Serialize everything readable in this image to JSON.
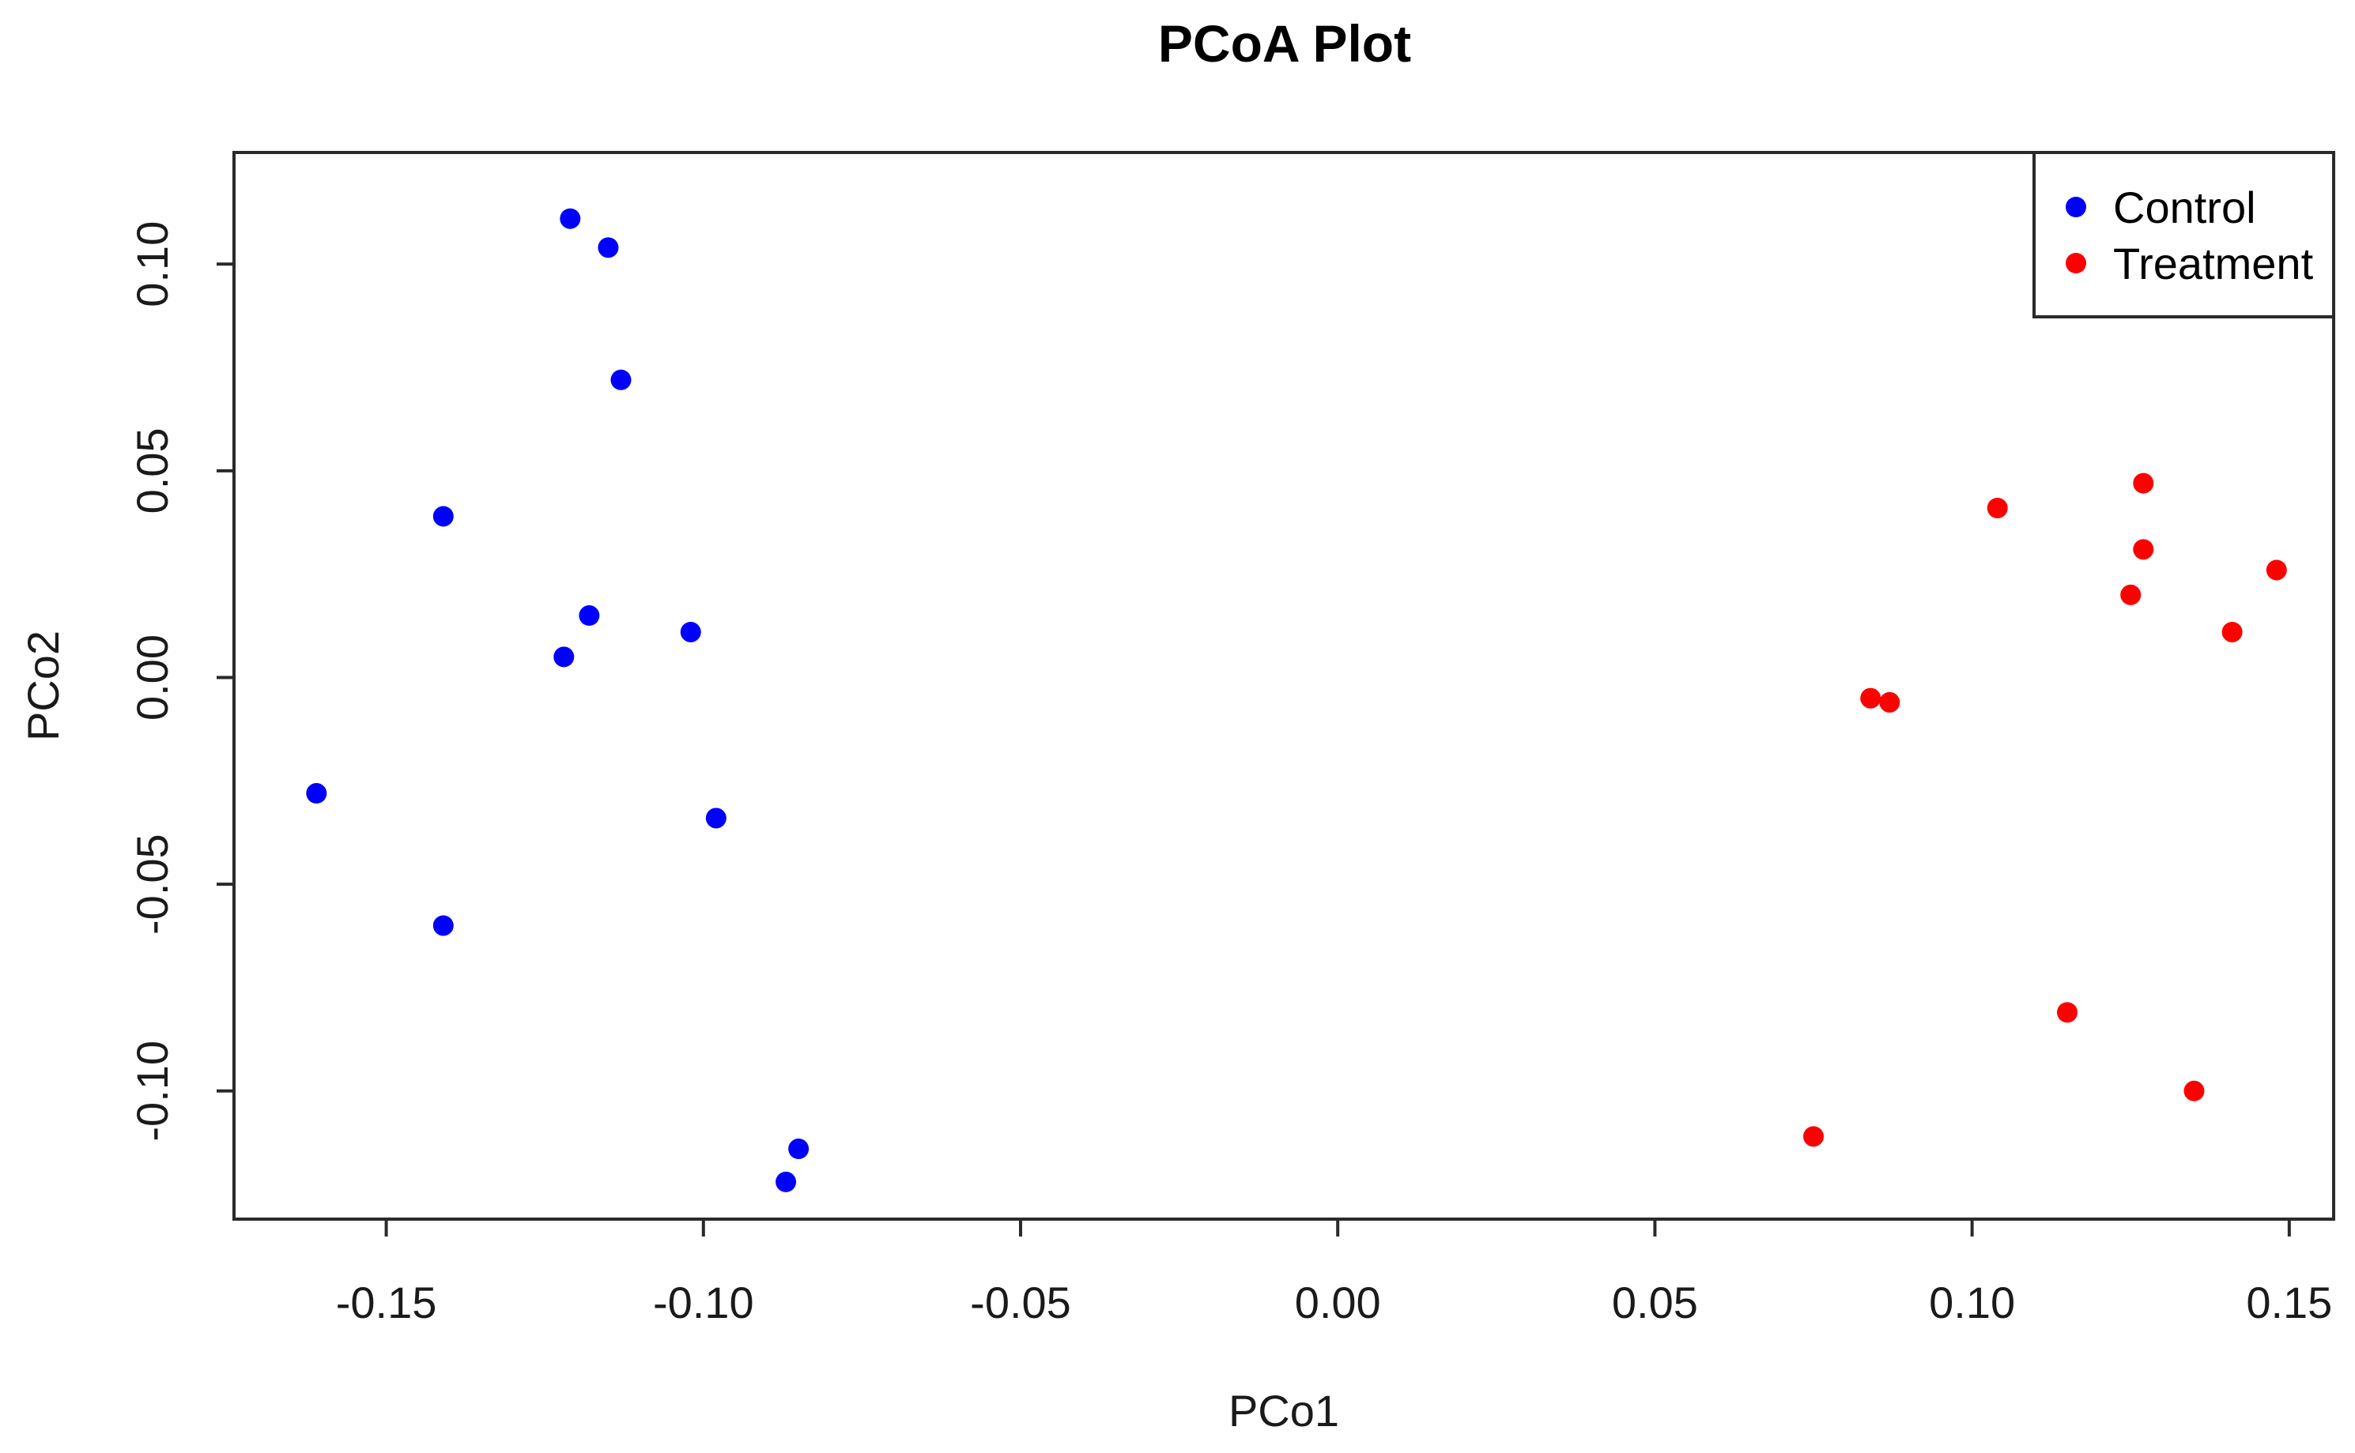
{
  "chart_data": {
    "type": "scatter",
    "title": "PCoA Plot",
    "xlabel": "PCo1",
    "ylabel": "PCo2",
    "xlim": [
      -0.174,
      0.157
    ],
    "ylim": [
      -0.131,
      0.127
    ],
    "x_ticks": [
      "-0.15",
      "-0.10",
      "-0.05",
      "0.00",
      "0.05",
      "0.10",
      "0.15"
    ],
    "y_ticks": [
      "-0.10",
      "-0.05",
      "0.00",
      "0.05",
      "0.10"
    ],
    "grid": false,
    "legend": {
      "position": "top-right",
      "entries": [
        "Control",
        "Treatment"
      ]
    },
    "series": [
      {
        "name": "Control",
        "color": "#0000ff",
        "points": [
          [
            -0.121,
            0.111
          ],
          [
            -0.115,
            0.104
          ],
          [
            -0.113,
            0.072
          ],
          [
            -0.141,
            0.039
          ],
          [
            -0.118,
            0.015
          ],
          [
            -0.122,
            0.005
          ],
          [
            -0.102,
            0.011
          ],
          [
            -0.161,
            -0.028
          ],
          [
            -0.098,
            -0.034
          ],
          [
            -0.141,
            -0.06
          ],
          [
            -0.085,
            -0.114
          ],
          [
            -0.087,
            -0.122
          ]
        ]
      },
      {
        "name": "Treatment",
        "color": "#ff0000",
        "points": [
          [
            0.104,
            0.041
          ],
          [
            0.127,
            0.047
          ],
          [
            0.127,
            0.031
          ],
          [
            0.148,
            0.026
          ],
          [
            0.125,
            0.02
          ],
          [
            0.141,
            0.011
          ],
          [
            0.084,
            -0.005
          ],
          [
            0.087,
            -0.006
          ],
          [
            0.115,
            -0.081
          ],
          [
            0.135,
            -0.1
          ],
          [
            0.075,
            -0.111
          ]
        ]
      }
    ]
  }
}
